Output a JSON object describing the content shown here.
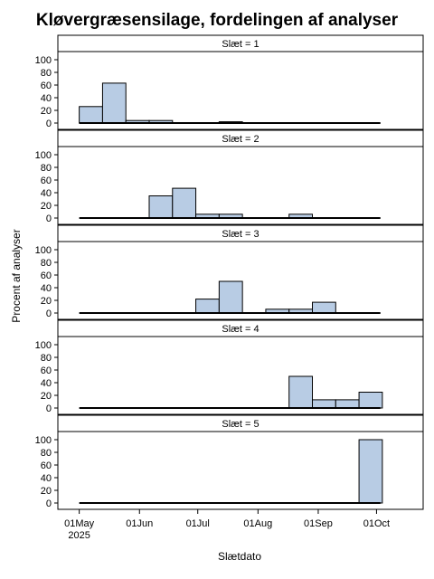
{
  "chart_data": {
    "type": "bar",
    "title": "Kløvergræsensilage, fordelingen af analyser",
    "xlabel": "Slætdato",
    "ylabel": "Procent af analyser",
    "ylim": [
      0,
      110
    ],
    "yticks": [
      0,
      20,
      40,
      60,
      80,
      100
    ],
    "xlim": [
      "2025-04-20",
      "2025-10-25"
    ],
    "xticks": [
      {
        "date": "2025-05-01",
        "label": "01May",
        "label2": "2025"
      },
      {
        "date": "2025-06-01",
        "label": "01Jun",
        "label2": ""
      },
      {
        "date": "2025-07-01",
        "label": "01Jul",
        "label2": ""
      },
      {
        "date": "2025-08-01",
        "label": "01Aug",
        "label2": ""
      },
      {
        "date": "2025-09-01",
        "label": "01Sep",
        "label2": ""
      },
      {
        "date": "2025-10-01",
        "label": "01Oct",
        "label2": ""
      }
    ],
    "baseline_range": [
      "2025-05-01",
      "2025-10-03"
    ],
    "bin_width_days": 12,
    "panels": [
      {
        "label": "Slæt = 1",
        "bars": [
          {
            "start": "2025-05-01",
            "value": 26
          },
          {
            "start": "2025-05-13",
            "value": 63
          },
          {
            "start": "2025-05-25",
            "value": 4
          },
          {
            "start": "2025-06-06",
            "value": 4
          },
          {
            "start": "2025-07-12",
            "value": 2
          }
        ]
      },
      {
        "label": "Slæt = 2",
        "bars": [
          {
            "start": "2025-06-06",
            "value": 35
          },
          {
            "start": "2025-06-18",
            "value": 47
          },
          {
            "start": "2025-06-30",
            "value": 6
          },
          {
            "start": "2025-07-12",
            "value": 6
          },
          {
            "start": "2025-08-17",
            "value": 6
          }
        ]
      },
      {
        "label": "Slæt = 3",
        "bars": [
          {
            "start": "2025-06-30",
            "value": 22
          },
          {
            "start": "2025-07-12",
            "value": 50
          },
          {
            "start": "2025-08-05",
            "value": 6
          },
          {
            "start": "2025-08-17",
            "value": 6
          },
          {
            "start": "2025-08-29",
            "value": 17
          }
        ]
      },
      {
        "label": "Slæt = 4",
        "bars": [
          {
            "start": "2025-08-17",
            "value": 50
          },
          {
            "start": "2025-08-29",
            "value": 13
          },
          {
            "start": "2025-09-10",
            "value": 13
          },
          {
            "start": "2025-09-22",
            "value": 25
          }
        ]
      },
      {
        "label": "Slæt = 5",
        "bars": [
          {
            "start": "2025-09-22",
            "value": 100
          }
        ]
      }
    ]
  }
}
